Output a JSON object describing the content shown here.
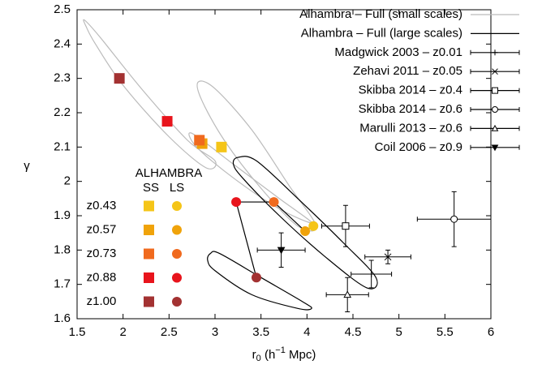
{
  "chart_data": {
    "type": "scatter",
    "xlabel": {
      "base": "r",
      "sub": "0",
      "pre": " (h",
      "sup": "−1",
      "post": " Mpc)"
    },
    "ylabel": "γ",
    "xlim": [
      1.5,
      6
    ],
    "ylim": [
      1.6,
      2.5
    ],
    "xticks": [
      1.5,
      2,
      2.5,
      3,
      3.5,
      4,
      4.5,
      5,
      5.5,
      6
    ],
    "yticks": [
      1.6,
      1.7,
      1.8,
      1.9,
      2,
      2.1,
      2.2,
      2.3,
      2.4,
      2.5
    ],
    "grid": false,
    "legend": "upper right",
    "series": [
      {
        "name": "Alhambra – Full (small scales)",
        "color": "#bbbbbb",
        "kind": "contour",
        "contours": [
          {
            "x": [
              1.58,
              1.75,
              2.2,
              2.7,
              3.0,
              2.9,
              2.5,
              2.0,
              1.7,
              1.6
            ],
            "y": [
              2.47,
              2.42,
              2.27,
              2.12,
              2.06,
              2.04,
              2.13,
              2.28,
              2.4,
              2.45
            ]
          },
          {
            "x": [
              2.82,
              3.0,
              3.4,
              3.8,
              4.1,
              3.9,
              3.5,
              3.1,
              2.85
            ],
            "y": [
              2.29,
              2.27,
              2.15,
              1.99,
              1.87,
              1.87,
              1.98,
              2.12,
              2.24
            ]
          },
          {
            "x": [
              2.75,
              3.2,
              3.7,
              4.05,
              3.7,
              3.2,
              2.8
            ],
            "y": [
              2.14,
              2.05,
              1.95,
              1.88,
              1.92,
              2.01,
              2.1
            ]
          }
        ]
      },
      {
        "name": "Alhambra – Full (large scales)",
        "color": "#000000",
        "kind": "contour",
        "contours": [
          {
            "x": [
              3.25,
              3.45,
              3.9,
              4.4,
              4.75,
              4.65,
              4.2,
              3.7,
              3.3,
              3.2
            ],
            "y": [
              2.07,
              2.06,
              1.95,
              1.82,
              1.72,
              1.69,
              1.78,
              1.9,
              2.01,
              2.05
            ]
          },
          {
            "x": [
              2.95,
              3.05,
              3.5,
              3.95,
              4.05,
              3.9,
              3.4,
              3.0,
              2.92
            ],
            "y": [
              1.79,
              1.79,
              1.72,
              1.65,
              1.63,
              1.63,
              1.67,
              1.74,
              1.77
            ]
          }
        ]
      },
      {
        "name": "Madgwick 2003 – z0.01",
        "color": "#000000",
        "kind": "errorbar",
        "marker": "plus",
        "x": [
          4.7
        ],
        "y": [
          1.73
        ],
        "xerr": [
          0.22
        ],
        "yerr": [
          0.04
        ]
      },
      {
        "name": "Zehavi 2011 – z0.05",
        "color": "#000000",
        "kind": "errorbar",
        "marker": "cross",
        "x": [
          4.88
        ],
        "y": [
          1.78
        ],
        "xerr": [
          0.25
        ],
        "yerr": [
          0.02
        ]
      },
      {
        "name": "Skibba 2014 – z0.4",
        "color": "#000000",
        "kind": "errorbar",
        "marker": "square",
        "x": [
          4.42
        ],
        "y": [
          1.87
        ],
        "xerr": [
          0.26
        ],
        "yerr": [
          0.06
        ]
      },
      {
        "name": "Skibba 2014 – z0.6",
        "color": "#000000",
        "kind": "errorbar",
        "marker": "circle",
        "x": [
          5.6
        ],
        "y": [
          1.89
        ],
        "xerr": [
          0.4
        ],
        "yerr": [
          0.08
        ]
      },
      {
        "name": "Marulli 2013 – z0.6",
        "color": "#000000",
        "kind": "errorbar",
        "marker": "triangle",
        "x": [
          4.44
        ],
        "y": [
          1.67
        ],
        "xerr": [
          0.23
        ],
        "yerr": [
          0.05
        ]
      },
      {
        "name": "Coil 2006 – z0.9",
        "color": "#000000",
        "kind": "errorbar",
        "marker": "triangle-down",
        "x": [
          3.72
        ],
        "y": [
          1.8
        ],
        "xerr": [
          0.26
        ],
        "yerr": [
          0.05
        ]
      }
    ],
    "samples": {
      "title": "ALHAMBRA",
      "column_labels": [
        "SS",
        "LS"
      ],
      "labels": [
        "z0.43",
        "z0.57",
        "z0.73",
        "z0.88",
        "z1.00"
      ],
      "colors": [
        "#f5c518",
        "#f0a30a",
        "#f06a1e",
        "#e8141c",
        "#a33232"
      ],
      "ss": {
        "x": [
          3.07,
          2.86,
          2.83,
          2.48,
          1.96
        ],
        "y": [
          2.1,
          2.11,
          2.12,
          2.175,
          2.3
        ]
      },
      "ls": {
        "x": [
          4.07,
          3.98,
          3.64,
          3.23,
          3.45
        ],
        "y": [
          1.87,
          1.855,
          1.94,
          1.94,
          1.72
        ]
      }
    }
  }
}
